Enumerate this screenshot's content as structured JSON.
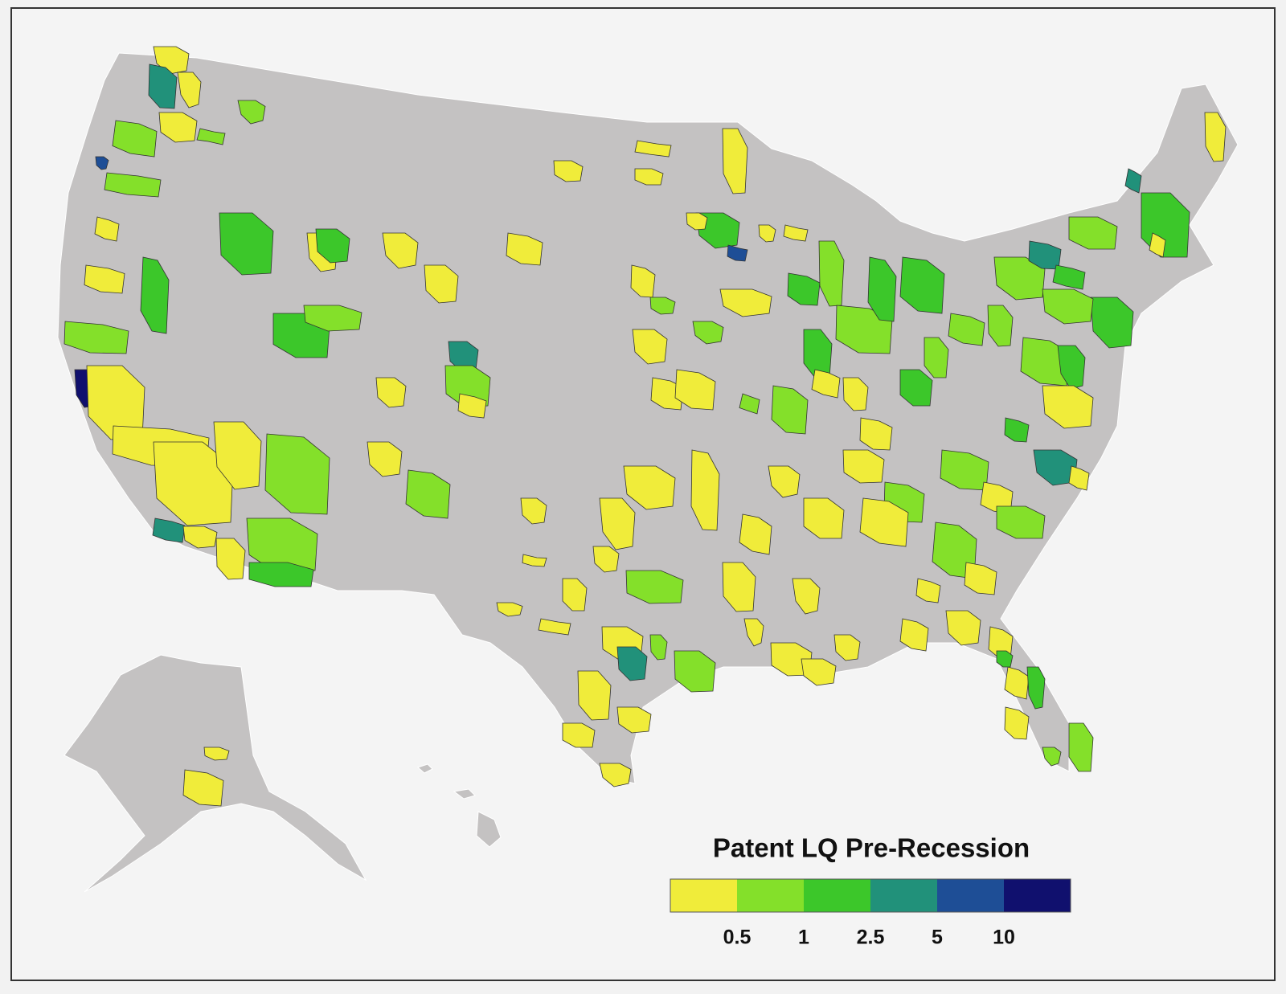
{
  "legend": {
    "title": "Patent  LQ Pre-Recession",
    "colors": [
      "#f0ec3a",
      "#84e02a",
      "#3cc72a",
      "#21917a",
      "#1e4e96",
      "#10106e"
    ],
    "breaks": [
      "0.5",
      "1",
      "2.5",
      "5",
      "10"
    ]
  }
}
